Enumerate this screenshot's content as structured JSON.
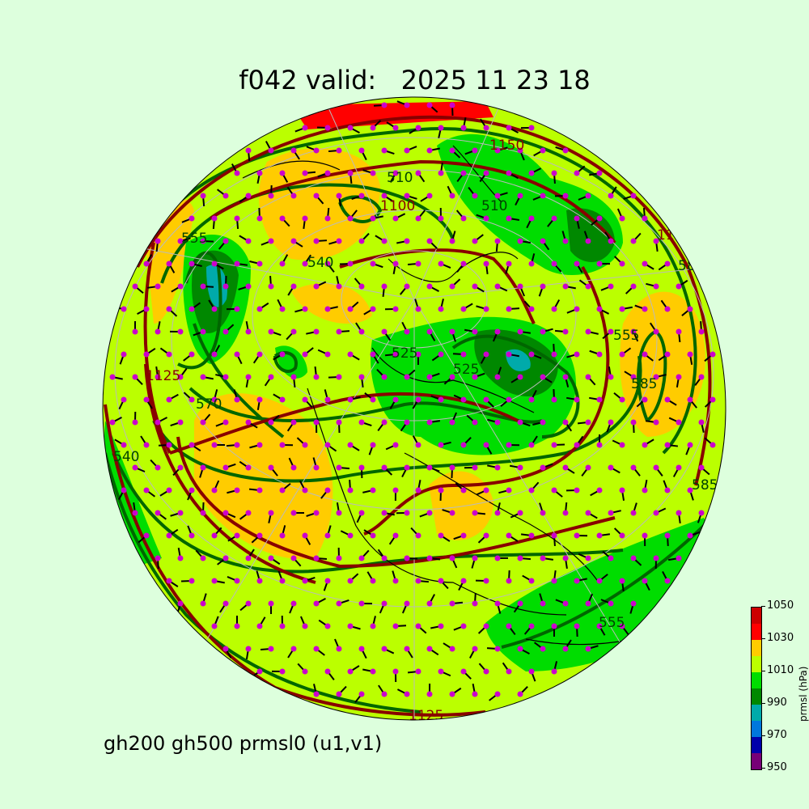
{
  "title": "f042 valid:   2025 11 23 18",
  "subtitle": "gh200 gh500 prmsl0 (u1,v1)",
  "colorbar": {
    "label": "prmsl (hPa)",
    "ticks": [
      "950",
      "970",
      "990",
      "1010",
      "1030",
      "1050"
    ],
    "levels": [
      950,
      960,
      970,
      980,
      990,
      1000,
      1010,
      1020,
      1030,
      1040,
      1050
    ],
    "colors": [
      "#770077",
      "#0000aa",
      "#0077dd",
      "#00aaaa",
      "#008800",
      "#00dd00",
      "#bbff00",
      "#ffcc00",
      "#ff0000",
      "#cc0000"
    ]
  },
  "colors": {
    "gh500_contour": "#006600",
    "gh200_contour": "#880000",
    "wind_dots": "#cc00cc",
    "coastline": "#000000",
    "background": "#ddffdd"
  },
  "contour_labels": [
    "510",
    "1100",
    "540",
    "525",
    "525",
    "555",
    "1125",
    "570",
    "585",
    "585",
    "1150",
    "510",
    "1125",
    "585",
    "555",
    "540",
    "555",
    "1125"
  ]
}
